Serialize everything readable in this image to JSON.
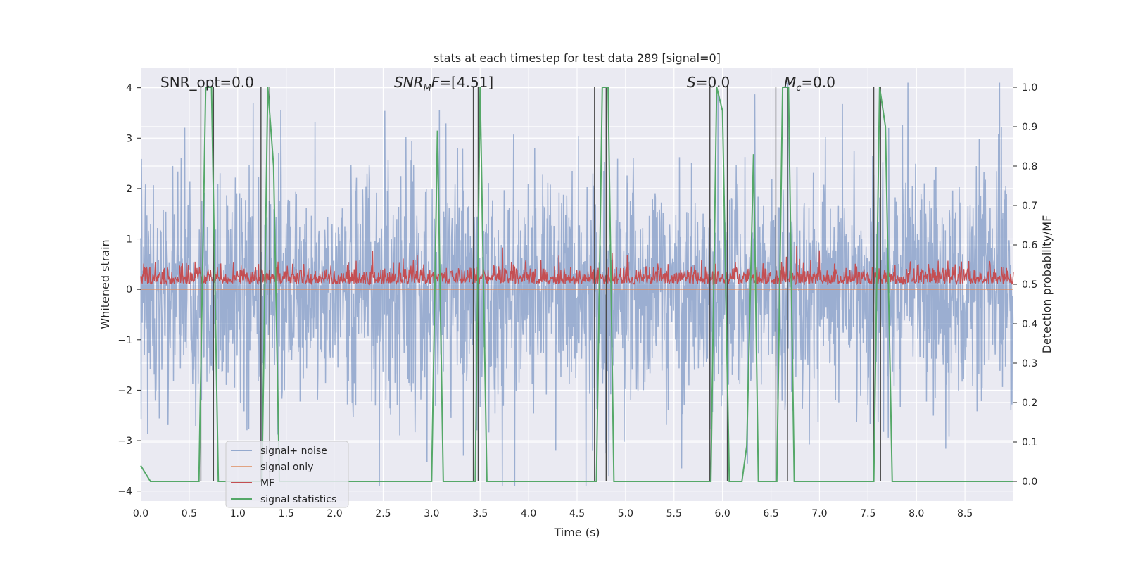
{
  "chart_data": {
    "type": "line",
    "title": "stats at each timestep for test data 289 [signal=0]",
    "xlabel": "Time (s)",
    "ylabel_left": "Whitened strain",
    "ylabel_right": "Detection probability/MF",
    "xlim": [
      0.0,
      9.0
    ],
    "ylim_left": [
      -4.2,
      4.4
    ],
    "ylim_right": [
      -0.05,
      1.05
    ],
    "x_ticks": [
      "0.0",
      "0.5",
      "1.0",
      "1.5",
      "2.0",
      "2.5",
      "3.0",
      "3.5",
      "4.0",
      "4.5",
      "5.0",
      "5.5",
      "6.0",
      "6.5",
      "7.0",
      "7.5",
      "8.0",
      "8.5"
    ],
    "y_ticks_left": [
      "−4",
      "−3",
      "−2",
      "−1",
      "0",
      "1",
      "2",
      "3",
      "4"
    ],
    "y_ticks_right": [
      "0.0",
      "0.1",
      "0.2",
      "0.3",
      "0.4",
      "0.5",
      "0.6",
      "0.7",
      "0.8",
      "0.9",
      "1.0"
    ],
    "grid": true,
    "legend_position": "bottom-left",
    "annotations": [
      {
        "base": "SNR_opt=0.0",
        "sub": "",
        "rest": ""
      },
      {
        "base": "SNR",
        "sub": "M",
        "rest": "F=[4.51]"
      },
      {
        "base": "S",
        "sub": "",
        "rest": "=0.0"
      },
      {
        "base": "M",
        "sub": "c",
        "rest": "=0.0"
      }
    ],
    "series": [
      {
        "name": "signal+ noise",
        "color": "#4c72b0",
        "axis": "left",
        "style": "noise ±2 typical, spikes to ±4"
      },
      {
        "name": "signal only",
        "color": "#dd8452",
        "axis": "left",
        "values_constant": 0.0
      },
      {
        "name": "MF",
        "color": "#c44e52",
        "axis": "right",
        "range": [
          0.5,
          0.58
        ]
      },
      {
        "name": "signal statistics",
        "color": "#55a868",
        "axis": "right",
        "x": [
          0.0,
          0.1,
          0.6,
          0.67,
          0.73,
          0.8,
          1.25,
          1.31,
          1.37,
          1.43,
          3.0,
          3.06,
          3.12,
          3.45,
          3.5,
          3.57,
          4.7,
          4.76,
          4.82,
          4.88,
          5.88,
          5.94,
          6.0,
          6.07,
          6.2,
          6.25,
          6.32,
          6.37,
          6.56,
          6.62,
          6.68,
          6.74,
          6.81,
          7.56,
          7.62,
          7.68,
          7.75,
          9.0
        ],
        "y": [
          0.04,
          0.0,
          0.0,
          1.0,
          1.0,
          0.0,
          0.0,
          1.0,
          0.8,
          0.0,
          0.0,
          0.89,
          0.0,
          0.0,
          1.0,
          0.0,
          0.0,
          1.0,
          1.0,
          0.0,
          0.0,
          1.0,
          0.94,
          0.0,
          0.0,
          0.09,
          0.83,
          0.0,
          0.0,
          1.0,
          1.0,
          0.0,
          0.0,
          0.0,
          1.0,
          0.9,
          0.0,
          0.0
        ]
      }
    ],
    "vertical_markers_x": [
      0.62,
      0.75,
      1.24,
      1.33,
      3.43,
      3.48,
      4.68,
      4.8,
      5.87,
      6.05,
      6.55,
      6.67,
      7.56,
      7.63
    ]
  }
}
